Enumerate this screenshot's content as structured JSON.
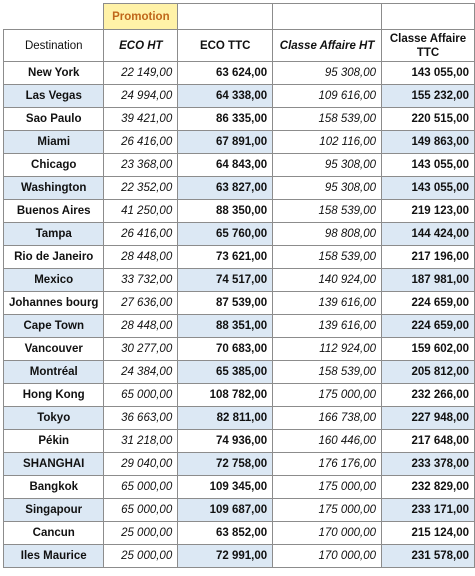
{
  "promotion_label": "Promotion",
  "headers": {
    "destination": "Destination",
    "eco_ht": "ECO HT",
    "eco_ttc": "ECO TTC",
    "affaire_ht": "Classe Affaire HT",
    "affaire_ttc": "Classe Affaire TTC"
  },
  "rows": [
    {
      "destination": "New York",
      "eco_ht": "22 149,00",
      "eco_ttc": "63 624,00",
      "affaire_ht": "95 308,00",
      "affaire_ttc": "143 055,00"
    },
    {
      "destination": "Las Vegas",
      "eco_ht": "24 994,00",
      "eco_ttc": "64 338,00",
      "affaire_ht": "109 616,00",
      "affaire_ttc": "155 232,00"
    },
    {
      "destination": "Sao Paulo",
      "eco_ht": "39 421,00",
      "eco_ttc": "86 335,00",
      "affaire_ht": "158 539,00",
      "affaire_ttc": "220 515,00"
    },
    {
      "destination": "Miami",
      "eco_ht": "26 416,00",
      "eco_ttc": "67 891,00",
      "affaire_ht": "102 116,00",
      "affaire_ttc": "149 863,00"
    },
    {
      "destination": "Chicago",
      "eco_ht": "23 368,00",
      "eco_ttc": "64 843,00",
      "affaire_ht": "95 308,00",
      "affaire_ttc": "143 055,00"
    },
    {
      "destination": "Washington",
      "eco_ht": "22 352,00",
      "eco_ttc": "63 827,00",
      "affaire_ht": "95 308,00",
      "affaire_ttc": "143 055,00"
    },
    {
      "destination": "Buenos Aires",
      "eco_ht": "41 250,00",
      "eco_ttc": "88 350,00",
      "affaire_ht": "158 539,00",
      "affaire_ttc": "219 123,00"
    },
    {
      "destination": "Tampa",
      "eco_ht": "26 416,00",
      "eco_ttc": "65 760,00",
      "affaire_ht": "98 808,00",
      "affaire_ttc": "144 424,00"
    },
    {
      "destination": "Rio de Janeiro",
      "eco_ht": "28 448,00",
      "eco_ttc": "73 621,00",
      "affaire_ht": "158 539,00",
      "affaire_ttc": "217 196,00"
    },
    {
      "destination": "Mexico",
      "eco_ht": "33 732,00",
      "eco_ttc": "74 517,00",
      "affaire_ht": "140 924,00",
      "affaire_ttc": "187 981,00"
    },
    {
      "destination": "Johannes bourg",
      "eco_ht": "27 636,00",
      "eco_ttc": "87 539,00",
      "affaire_ht": "139 616,00",
      "affaire_ttc": "224 659,00"
    },
    {
      "destination": "Cape Town",
      "eco_ht": "28 448,00",
      "eco_ttc": "88 351,00",
      "affaire_ht": "139 616,00",
      "affaire_ttc": "224 659,00"
    },
    {
      "destination": "Vancouver",
      "eco_ht": "30 277,00",
      "eco_ttc": "70 683,00",
      "affaire_ht": "112 924,00",
      "affaire_ttc": "159 602,00"
    },
    {
      "destination": "Montréal",
      "eco_ht": "24 384,00",
      "eco_ttc": "65 385,00",
      "affaire_ht": "158 539,00",
      "affaire_ttc": "205 812,00"
    },
    {
      "destination": "Hong Kong",
      "eco_ht": "65 000,00",
      "eco_ttc": "108 782,00",
      "affaire_ht": "175 000,00",
      "affaire_ttc": "232 266,00"
    },
    {
      "destination": "Tokyo",
      "eco_ht": "36 663,00",
      "eco_ttc": "82 811,00",
      "affaire_ht": "166 738,00",
      "affaire_ttc": "227 948,00"
    },
    {
      "destination": "Pékin",
      "eco_ht": "31 218,00",
      "eco_ttc": "74 936,00",
      "affaire_ht": "160 446,00",
      "affaire_ttc": "217 648,00"
    },
    {
      "destination": "SHANGHAI",
      "eco_ht": "29 040,00",
      "eco_ttc": "72 758,00",
      "affaire_ht": "176 176,00",
      "affaire_ttc": "233 378,00"
    },
    {
      "destination": "Bangkok",
      "eco_ht": "65 000,00",
      "eco_ttc": "109 345,00",
      "affaire_ht": "175 000,00",
      "affaire_ttc": "232 829,00"
    },
    {
      "destination": "Singapour",
      "eco_ht": "65 000,00",
      "eco_ttc": "109 687,00",
      "affaire_ht": "175 000,00",
      "affaire_ttc": "233 171,00"
    },
    {
      "destination": "Cancun",
      "eco_ht": "25 000,00",
      "eco_ttc": "63 852,00",
      "affaire_ht": "170 000,00",
      "affaire_ttc": "215 124,00"
    },
    {
      "destination": "Iles Maurice",
      "eco_ht": "25 000,00",
      "eco_ttc": "72 991,00",
      "affaire_ht": "170 000,00",
      "affaire_ttc": "231 578,00"
    }
  ]
}
